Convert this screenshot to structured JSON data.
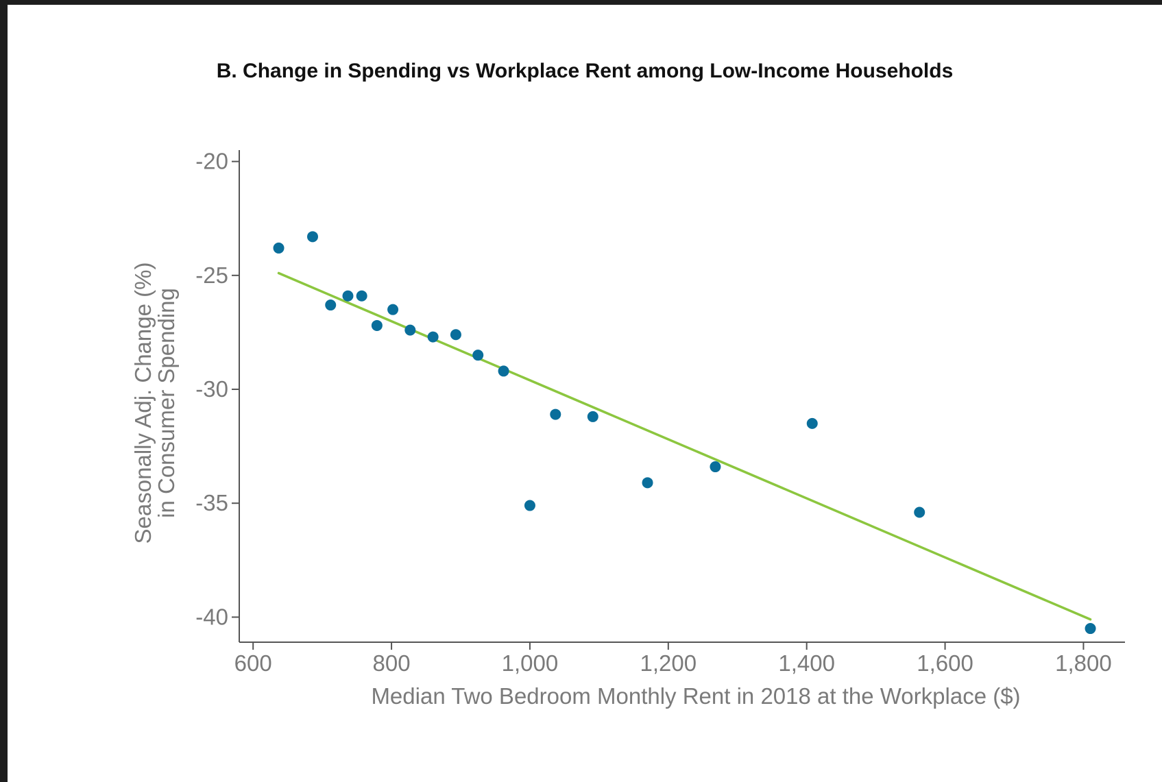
{
  "chart_data": {
    "type": "scatter",
    "title": "B. Change in Spending vs Workplace Rent among Low-Income Households",
    "xlabel": "Median Two Bedroom Monthly Rent in 2018 at the Workplace ($)",
    "ylabel_lines": [
      "Seasonally Adj. Change (%)",
      "in Consumer Spending"
    ],
    "xlim": [
      580,
      1860
    ],
    "ylim": [
      -41.1,
      -19.5
    ],
    "x_ticks": [
      {
        "value": 600,
        "label": "600"
      },
      {
        "value": 800,
        "label": "800"
      },
      {
        "value": 1000,
        "label": "1,000"
      },
      {
        "value": 1200,
        "label": "1,200"
      },
      {
        "value": 1400,
        "label": "1,400"
      },
      {
        "value": 1600,
        "label": "1,600"
      },
      {
        "value": 1800,
        "label": "1,800"
      }
    ],
    "y_ticks": [
      {
        "value": -20,
        "label": "-20"
      },
      {
        "value": -25,
        "label": "-25"
      },
      {
        "value": -30,
        "label": "-30"
      },
      {
        "value": -35,
        "label": "-35"
      },
      {
        "value": -40,
        "label": "-40"
      }
    ],
    "grid": false,
    "series": [
      {
        "x": [
          637,
          686,
          712,
          737,
          757,
          779,
          802,
          827,
          860,
          893,
          925,
          962,
          1000,
          1037,
          1091,
          1170,
          1268,
          1408,
          1563,
          1810
        ],
        "y": [
          -23.8,
          -23.3,
          -26.3,
          -25.9,
          -25.9,
          -27.2,
          -26.5,
          -27.4,
          -27.7,
          -27.6,
          -28.5,
          -29.2,
          -35.1,
          -31.1,
          -31.2,
          -34.1,
          -33.4,
          -31.5,
          -35.4,
          -40.5
        ]
      }
    ],
    "fit_line": {
      "x": [
        637,
        1810
      ],
      "y": [
        -24.9,
        -40.1
      ]
    },
    "colors": {
      "points": "#0a6e9b",
      "fit_line": "#8cc63f",
      "axis": "#555555",
      "text": "#7a7a7a"
    }
  }
}
